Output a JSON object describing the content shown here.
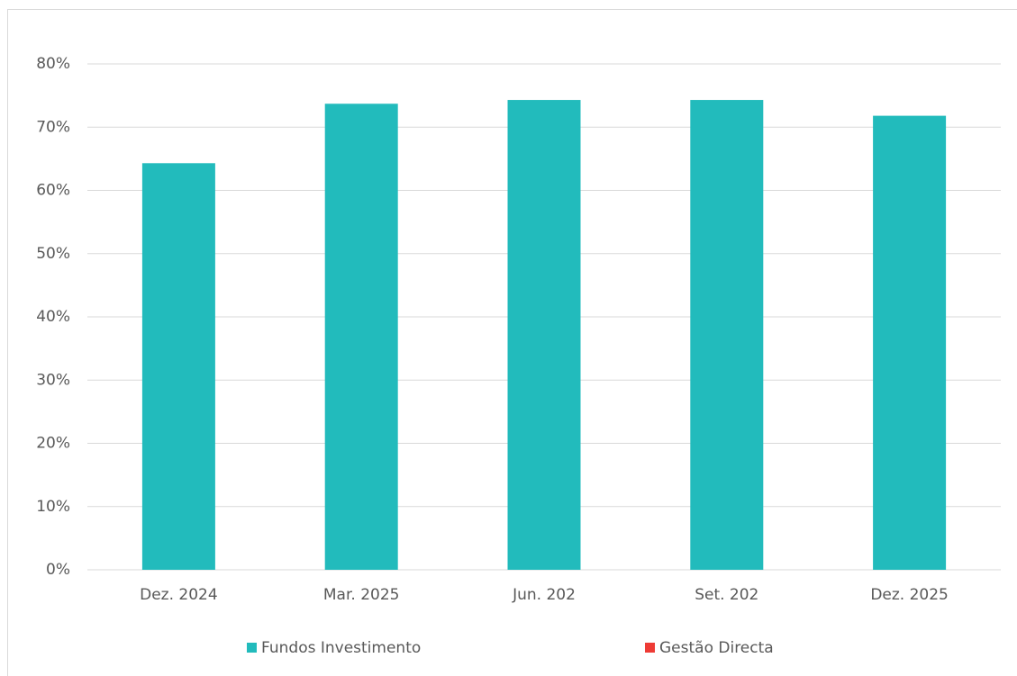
{
  "chart_data": {
    "type": "bar",
    "stacked": true,
    "categories": [
      "Dez. 2024",
      "Mar. 2025",
      "Jun. 202",
      "Set. 202",
      "Dez. 2025"
    ],
    "series": [
      {
        "name": "Fundos Investimento",
        "color": "#22bbbc",
        "values": [
          64.3,
          73.7,
          74.3,
          74.3,
          71.8
        ]
      },
      {
        "name": "Gestão Directa",
        "color": "#ee3b35",
        "values": [
          0,
          0,
          0,
          0,
          0
        ]
      }
    ],
    "ylim": [
      0,
      80
    ],
    "yticks": [
      {
        "value": 0,
        "label": "0%"
      },
      {
        "value": 10,
        "label": "10%"
      },
      {
        "value": 20,
        "label": "20%"
      },
      {
        "value": 30,
        "label": "30%"
      },
      {
        "value": 40,
        "label": "40%"
      },
      {
        "value": 50,
        "label": "50%"
      },
      {
        "value": 60,
        "label": "60%"
      },
      {
        "value": 70,
        "label": "70%"
      },
      {
        "value": 80,
        "label": "80%"
      }
    ],
    "grid": true,
    "legend": "bottom"
  }
}
